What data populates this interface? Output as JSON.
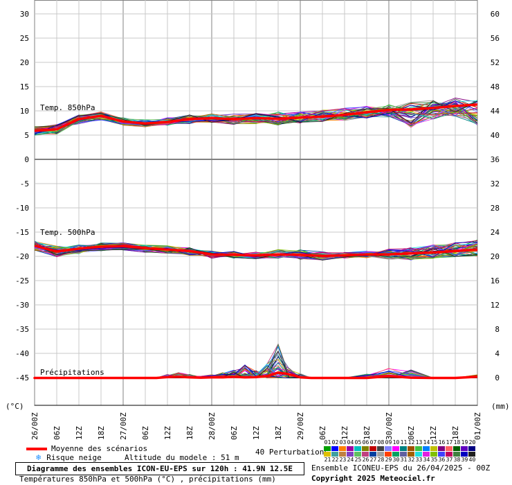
{
  "chart_data": {
    "type": "line",
    "left_axis": {
      "unit": "(°C)",
      "ticks": [
        "30",
        "25",
        "20",
        "15",
        "10",
        "5",
        "0",
        "-5",
        "-10",
        "-15",
        "-20",
        "-25",
        "-30",
        "-35",
        "-40",
        "-45"
      ]
    },
    "right_axis": {
      "unit": "(mm)",
      "ticks": [
        "60",
        "56",
        "52",
        "48",
        "44",
        "40",
        "36",
        "32",
        "28",
        "24",
        "20",
        "16",
        "12",
        "8",
        "4",
        "0"
      ]
    },
    "x_tick_labels": [
      "26/00Z",
      "06Z",
      "12Z",
      "18Z",
      "27/00Z",
      "06Z",
      "12Z",
      "18Z",
      "28/00Z",
      "06Z",
      "12Z",
      "18Z",
      "29/00Z",
      "06Z",
      "12Z",
      "18Z",
      "30/00Z",
      "06Z",
      "12Z",
      "18Z",
      "01/00Z"
    ],
    "grid": true,
    "panels": [
      {
        "name": "Temp. 850hPa",
        "axis": "left",
        "x_hours": [
          0,
          6,
          12,
          18,
          24,
          30,
          36,
          42,
          48,
          54,
          60,
          66,
          72,
          78,
          84,
          90,
          96,
          102,
          108,
          114,
          120
        ],
        "mean": [
          5.9,
          6.2,
          8.3,
          9.0,
          7.8,
          7.4,
          7.7,
          8.3,
          8.5,
          8.3,
          8.5,
          8.4,
          8.6,
          8.8,
          9.2,
          9.7,
          10.2,
          10.3,
          10.6,
          11.0,
          11.3
        ],
        "min": [
          5.0,
          5.2,
          7.3,
          8.1,
          7.0,
          6.7,
          7.0,
          7.4,
          7.6,
          7.2,
          7.3,
          7.0,
          7.5,
          7.8,
          8.0,
          8.5,
          8.7,
          6.4,
          8.3,
          8.8,
          7.0
        ],
        "max": [
          6.8,
          7.2,
          9.2,
          9.8,
          8.6,
          8.2,
          8.6,
          9.2,
          9.4,
          9.4,
          9.6,
          9.8,
          9.8,
          10.2,
          10.6,
          11.0,
          11.5,
          11.9,
          12.2,
          12.8,
          12.5
        ]
      },
      {
        "name": "Temp. 500hPa",
        "axis": "left",
        "x_hours": [
          0,
          6,
          12,
          18,
          24,
          30,
          36,
          42,
          48,
          54,
          60,
          66,
          72,
          78,
          84,
          90,
          96,
          102,
          108,
          114,
          120
        ],
        "mean": [
          -17.8,
          -19.0,
          -18.4,
          -18.0,
          -17.9,
          -18.3,
          -18.6,
          -18.9,
          -19.6,
          -19.7,
          -19.8,
          -19.6,
          -19.7,
          -19.9,
          -19.8,
          -19.6,
          -19.6,
          -19.4,
          -19.2,
          -18.9,
          -18.6
        ],
        "min": [
          -18.8,
          -20.2,
          -19.5,
          -18.9,
          -18.7,
          -19.2,
          -19.4,
          -19.8,
          -20.4,
          -20.4,
          -20.5,
          -20.4,
          -20.6,
          -20.8,
          -20.4,
          -20.3,
          -20.6,
          -20.8,
          -20.4,
          -20.2,
          -20.0
        ],
        "max": [
          -16.8,
          -17.8,
          -17.6,
          -17.2,
          -17.2,
          -17.6,
          -17.8,
          -18.2,
          -18.9,
          -19.0,
          -19.1,
          -18.6,
          -18.6,
          -19.0,
          -19.1,
          -18.9,
          -18.4,
          -18.1,
          -17.6,
          -17.1,
          -16.6
        ]
      },
      {
        "name": "Précipitations",
        "axis": "right",
        "x_hours": [
          0,
          6,
          12,
          18,
          24,
          30,
          33,
          36,
          39,
          42,
          45,
          48,
          51,
          54,
          57,
          60,
          63,
          66,
          69,
          72,
          75,
          78,
          84,
          90,
          96,
          102,
          108,
          114,
          120
        ],
        "mean": [
          0,
          0,
          0,
          0,
          0,
          0,
          0,
          0.15,
          0.2,
          0.1,
          0.05,
          0.1,
          0.1,
          0.2,
          0.1,
          0.15,
          0.3,
          0.9,
          0.6,
          0.1,
          0,
          0,
          0,
          0,
          0.3,
          0.05,
          0,
          0,
          0.2
        ],
        "max": [
          0,
          0,
          0,
          0,
          0,
          0,
          0,
          0.6,
          0.9,
          0.7,
          0.3,
          0.6,
          0.9,
          1.3,
          2.2,
          1.2,
          2.6,
          5.9,
          1.6,
          0.8,
          0,
          0,
          0,
          0.7,
          1.6,
          1.4,
          0,
          0,
          0.6
        ]
      }
    ],
    "legend": [
      "Moyenne des scénarios",
      "Risque neige"
    ]
  },
  "colors": {
    "mean": "#ff0000",
    "snow": "#1e90ff",
    "grid": "#c8c8c8",
    "major_grid": "#808080"
  },
  "legend": {
    "mean_label": "Moyenne des scénarios",
    "snow_label": "Risque neige",
    "altitude": "Altitude du modele : 51 m"
  },
  "perturbations": {
    "label": "40 Perturbations",
    "row1": [
      "01",
      "02",
      "03",
      "04",
      "05",
      "06",
      "07",
      "08",
      "09",
      "10",
      "11",
      "12",
      "13",
      "14",
      "15",
      "16",
      "17",
      "18",
      "19",
      "20"
    ],
    "row2": [
      "21",
      "22",
      "23",
      "24",
      "25",
      "26",
      "27",
      "28",
      "29",
      "30",
      "31",
      "32",
      "33",
      "34",
      "35",
      "36",
      "37",
      "38",
      "39",
      "40"
    ],
    "colors1": [
      "#00a000",
      "#0000ff",
      "#ff8000",
      "#a000a0",
      "#00c0c0",
      "#808000",
      "#c00000",
      "#404040",
      "#8080ff",
      "#ff00ff",
      "#008080",
      "#a05000",
      "#40c040",
      "#0080ff",
      "#c0c000",
      "#800080",
      "#ff6060",
      "#006000",
      "#6000c0",
      "#000080"
    ],
    "colors2": [
      "#e0c000",
      "#40a0a0",
      "#c08040",
      "#8040c0",
      "#60c060",
      "#c04080",
      "#0040a0",
      "#a0a0a0",
      "#ff4000",
      "#00a060",
      "#6060a0",
      "#a06000",
      "#20e0e0",
      "#e020e0",
      "#80c000",
      "#4040ff",
      "#c00060",
      "#408040",
      "#0000c0",
      "#202020"
    ]
  },
  "footer": {
    "title": "Diagramme des ensembles ICON-EU-EPS sur 120h : 41.9N 12.5E",
    "subtitle": "Températures 850hPa et 500hPa (°C) , précipitations (mm)",
    "run": "Ensemble ICONEU-EPS du 26/04/2025 - 00Z",
    "copyright": "Copyright 2025 Meteociel.fr"
  }
}
